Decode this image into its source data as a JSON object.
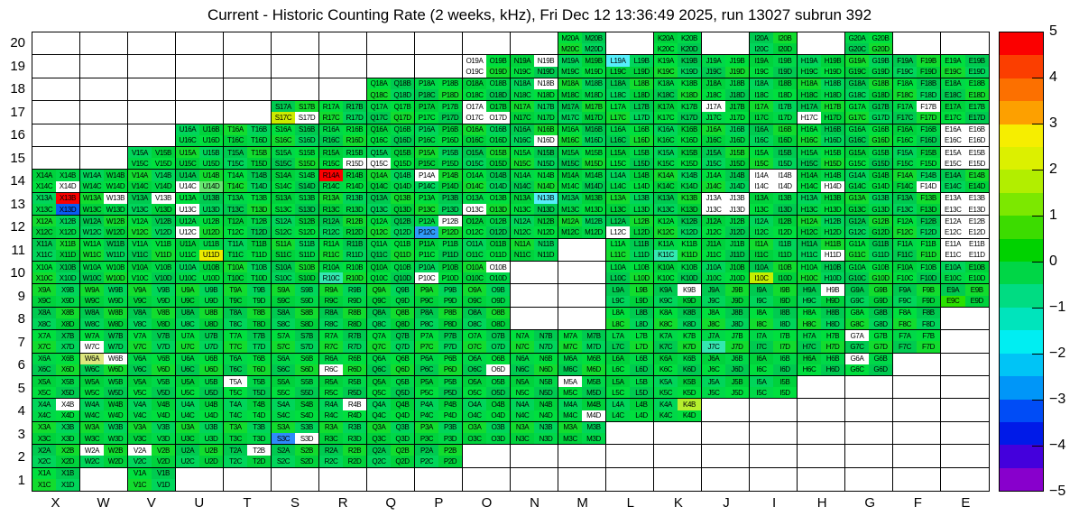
{
  "title": "Current - Historic Counting Rate (2 weeks, kHz), Fri Dec 12 13:36:49 2025, run 13027 subrun 392",
  "chart_data": {
    "type": "heatmap",
    "title": "Current - Historic Counting Rate (2 weeks, kHz), Fri Dec 12 13:36:49 2025, run 13027 subrun 392",
    "x_categories": [
      "X",
      "W",
      "V",
      "U",
      "T",
      "S",
      "R",
      "Q",
      "P",
      "O",
      "N",
      "M",
      "L",
      "K",
      "J",
      "I",
      "H",
      "G",
      "F",
      "E"
    ],
    "y_categories": [
      20,
      19,
      18,
      17,
      16,
      15,
      14,
      13,
      12,
      11,
      10,
      9,
      8,
      7,
      6,
      5,
      4,
      3,
      2,
      1
    ],
    "subcells_per_block": [
      "A",
      "B",
      "C",
      "D"
    ],
    "value_range": [
      -5,
      5
    ],
    "default_value_note": "most filled subcells are green, approx 0 to 1 kHz deviation",
    "present_blocks_by_row": {
      "20": [
        "M",
        "K",
        "I",
        "G"
      ],
      "19": [
        "O",
        "N",
        "M",
        "L",
        "K",
        "J",
        "I",
        "H",
        "G",
        "F",
        "E"
      ],
      "18": [
        "Q",
        "P",
        "O",
        "N",
        "M",
        "L",
        "K",
        "J",
        "I",
        "H",
        "G",
        "F",
        "E"
      ],
      "17": [
        "S",
        "R",
        "Q",
        "P",
        "O",
        "N",
        "M",
        "L",
        "K",
        "J",
        "I",
        "H",
        "G",
        "F",
        "E"
      ],
      "16": [
        "U",
        "T",
        "S",
        "R",
        "Q",
        "P",
        "O",
        "N",
        "M",
        "L",
        "K",
        "J",
        "I",
        "H",
        "G",
        "F",
        "E"
      ],
      "15": [
        "V",
        "U",
        "T",
        "S",
        "R",
        "Q",
        "P",
        "O",
        "N",
        "M",
        "L",
        "K",
        "J",
        "I",
        "H",
        "G",
        "F",
        "E"
      ],
      "14": [
        "X",
        "W",
        "V",
        "U",
        "T",
        "S",
        "R",
        "Q",
        "P",
        "O",
        "N",
        "M",
        "L",
        "K",
        "J",
        "I",
        "H",
        "G",
        "F",
        "E"
      ],
      "13": [
        "X",
        "W",
        "V",
        "U",
        "T",
        "S",
        "R",
        "Q",
        "P",
        "O",
        "N",
        "M",
        "L",
        "K",
        "J",
        "I",
        "H",
        "G",
        "F",
        "E"
      ],
      "12": [
        "X",
        "W",
        "V",
        "U",
        "T",
        "S",
        "R",
        "Q",
        "P",
        "O",
        "N",
        "M",
        "L",
        "K",
        "J",
        "I",
        "H",
        "G",
        "F",
        "E"
      ],
      "11": [
        "X",
        "W",
        "V",
        "U",
        "T",
        "S",
        "R",
        "Q",
        "P",
        "O",
        "N",
        "L",
        "K",
        "J",
        "I",
        "H",
        "G",
        "F",
        "E"
      ],
      "10": [
        "X",
        "W",
        "V",
        "U",
        "T",
        "S",
        "R",
        "Q",
        "P",
        "O",
        "L",
        "K",
        "J",
        "I",
        "H",
        "G",
        "F",
        "E"
      ],
      "9": [
        "X",
        "W",
        "V",
        "U",
        "T",
        "S",
        "R",
        "Q",
        "P",
        "O",
        "L",
        "K",
        "J",
        "I",
        "H",
        "G",
        "F",
        "E"
      ],
      "8": [
        "X",
        "W",
        "V",
        "U",
        "T",
        "S",
        "R",
        "Q",
        "P",
        "O",
        "L",
        "K",
        "J",
        "I",
        "H",
        "G",
        "F"
      ],
      "7": [
        "X",
        "W",
        "V",
        "U",
        "T",
        "S",
        "R",
        "Q",
        "P",
        "O",
        "N",
        "M",
        "L",
        "K",
        "J",
        "I",
        "H",
        "G",
        "F"
      ],
      "6": [
        "X",
        "W",
        "V",
        "U",
        "T",
        "S",
        "R",
        "Q",
        "P",
        "O",
        "N",
        "M",
        "L",
        "K",
        "J",
        "I",
        "H",
        "G"
      ],
      "5": [
        "X",
        "W",
        "V",
        "U",
        "T",
        "S",
        "R",
        "Q",
        "P",
        "O",
        "N",
        "M",
        "L",
        "K",
        "J",
        "I"
      ],
      "4": [
        "X",
        "W",
        "V",
        "U",
        "T",
        "S",
        "R",
        "Q",
        "P",
        "O",
        "N",
        "M",
        "L",
        "K"
      ],
      "3": [
        "X",
        "W",
        "V",
        "U",
        "T",
        "S",
        "R",
        "Q",
        "P",
        "O",
        "N",
        "M"
      ],
      "2": [
        "X",
        "W",
        "V",
        "U",
        "T",
        "S",
        "R",
        "Q",
        "P"
      ],
      "1": [
        "X",
        "V"
      ]
    },
    "no_data_subcells": [
      "O19A",
      "O19C",
      "N19B",
      "N18B",
      "S17D",
      "O17A",
      "O17C",
      "O17D",
      "J17A",
      "H17C",
      "F17B",
      "N16D",
      "E16A",
      "E16B",
      "E16C",
      "E16D",
      "R15D",
      "Q15C",
      "E15A",
      "E15B",
      "E15C",
      "E15D",
      "X14D",
      "U14C",
      "P14A",
      "I14A",
      "I14B",
      "I14C",
      "I14D",
      "H14D",
      "F14D",
      "W13B",
      "V13B",
      "U13C",
      "O13C",
      "J13A",
      "J13B",
      "J13C",
      "J13D",
      "E13A",
      "E13B",
      "E13C",
      "E13D",
      "U12C",
      "P12B",
      "L12C",
      "E12A",
      "E12B",
      "E12C",
      "E12D",
      "H11D",
      "E11A",
      "E11B",
      "E11C",
      "E11D",
      "O10B",
      "P10C",
      "K9B",
      "H9B",
      "W7C",
      "G7A",
      "W6B",
      "R6C",
      "O6D",
      "G6A",
      "T5A",
      "M5A",
      "X4B",
      "R4B",
      "M4D",
      "S3D",
      "W2A",
      "V2A",
      "T2B"
    ],
    "outlier_subcells": {
      "R14A": 5,
      "X13B": 5,
      "X13D": -3.5,
      "P12C": -2.6,
      "S3C": -2.7,
      "L19A": -1.9,
      "N13B": -1.9,
      "U11D": 2.6,
      "S17C": 2.1,
      "I10C": 1.9,
      "K4B": 1.7,
      "W6A": 2.0,
      "E9C": 0.8,
      "U14D": 0.4,
      "K11C": -0.8,
      "R10C": -0.8,
      "J7C": -0.8
    }
  },
  "render": {
    "special_cell_colors": {
      "R14A": "#fb0000",
      "X13B": "#fb0000",
      "X13D": "#0a5cf2",
      "P12C": "#2e9bfa",
      "S3C": "#2e8bfa",
      "L19A": "#55eefa",
      "N13B": "#55eefa",
      "U11D": "#ecec00",
      "S17C": "#cdeb00",
      "I10C": "#c3ef00",
      "K4B": "#b5ef2e",
      "W6A": "#dde87e",
      "E9C": "#2ae000",
      "U14D": "#66e670",
      "K11C": "#33e8b0",
      "R10C": "#33e8b0",
      "J7C": "#33e8b0"
    },
    "green_shades": [
      "#00d23c",
      "#00d848",
      "#00df3e",
      "#00ca50",
      "#12dc2e",
      "#00d55a"
    ],
    "no_data_color": "#ffffff",
    "text_color": "#000000"
  },
  "colorbar": {
    "min": -5,
    "max": 5,
    "tick_labels": [
      "5",
      "4",
      "3",
      "2",
      "1",
      "0",
      "−1",
      "−2",
      "−3",
      "−4",
      "−5"
    ],
    "segment_colors_top_to_bottom": [
      "#fb0000",
      "#fb3e00",
      "#fc7000",
      "#fda000",
      "#f6ee00",
      "#dcf000",
      "#b2ee00",
      "#7ce800",
      "#3cdc00",
      "#00d200",
      "#00d646",
      "#00dc82",
      "#00e4bc",
      "#00eef2",
      "#00c4f6",
      "#0096f8",
      "#004cf6",
      "#001ae8",
      "#4400dc",
      "#8800cc"
    ]
  }
}
